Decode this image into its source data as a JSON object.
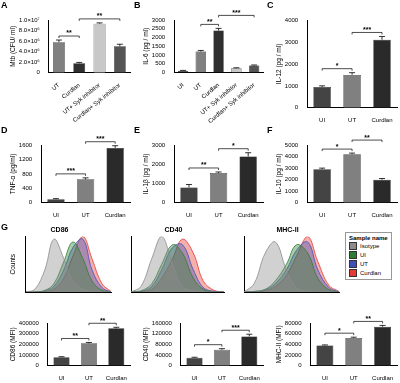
{
  "chart_data": [
    {
      "panel": "A",
      "type": "bar",
      "y_label": "Mtb (CFU/ ml)",
      "categories": [
        "UT",
        "Curdlan",
        "UT+ Syk inhibitor",
        "Curdlan+ Syk inhibitor"
      ],
      "values": [
        5800000,
        1800000,
        9300000,
        5000000
      ],
      "errors": [
        400000,
        150000,
        150000,
        400000
      ],
      "colors": [
        "#808080",
        "#2f2f2f",
        "#c8c8c8",
        "#555555"
      ],
      "ylim": [
        0,
        10000000
      ],
      "yticks": [
        0,
        {
          "value": 2000000,
          "label": "2.0×10⁶"
        },
        {
          "value": 4000000,
          "label": "4.0×10⁶"
        },
        {
          "value": 6000000,
          "label": "6.0×10⁶"
        },
        {
          "value": 8000000,
          "label": "8.0×10⁶"
        },
        {
          "value": 10000000,
          "label": "1.0×10⁷"
        }
      ],
      "grid": false,
      "annotations": [
        {
          "text": "**",
          "between": [
            "UT",
            "Curdlan"
          ]
        },
        {
          "text": "**",
          "between": [
            "Curdlan",
            "Curdlan+ Syk inhibitor"
          ]
        }
      ]
    },
    {
      "panel": "B",
      "type": "bar",
      "y_label": "IL-6 (pg / ml)",
      "categories": [
        "UI",
        "UT",
        "Curdlan",
        "UT+ Syk inhibitor",
        "Curdlan+ Syk inhibitor"
      ],
      "values": [
        100,
        1200,
        2400,
        250,
        400
      ],
      "errors": [
        20,
        60,
        120,
        20,
        30
      ],
      "colors": [
        "#333333",
        "#808080",
        "#2f2f2f",
        "#c8c8c8",
        "#555555"
      ],
      "ylim": [
        0,
        3000
      ],
      "yticks": [
        0,
        500,
        1000,
        1500,
        2000,
        2500,
        3000
      ],
      "grid": false,
      "annotations": [
        {
          "text": "**",
          "between": [
            "UT",
            "Curdlan"
          ]
        },
        {
          "text": "***",
          "between": [
            "Curdlan",
            "Curdlan+ Syk inhibitor"
          ]
        }
      ]
    },
    {
      "panel": "C",
      "type": "bar",
      "y_label": "IL-12 (pg / ml)",
      "categories": [
        "UI",
        "UT",
        "Curdlan"
      ],
      "values": [
        950,
        1500,
        3100
      ],
      "errors": [
        50,
        100,
        150
      ],
      "colors": [
        "#444444",
        "#808080",
        "#2a2a2a"
      ],
      "ylim": [
        0,
        4000
      ],
      "yticks": [
        0,
        1000,
        2000,
        3000,
        4000
      ],
      "grid": false,
      "annotations": [
        {
          "text": "*",
          "between": [
            "UI",
            "UT"
          ]
        },
        {
          "text": "***",
          "between": [
            "UT",
            "Curdlan"
          ]
        }
      ]
    },
    {
      "panel": "D",
      "type": "bar",
      "y_label": "TNF-α (pg/ml)",
      "categories": [
        "UI",
        "UT",
        "Curdlan"
      ],
      "values": [
        100,
        650,
        1520
      ],
      "errors": [
        15,
        40,
        60
      ],
      "colors": [
        "#444444",
        "#808080",
        "#2a2a2a"
      ],
      "ylim": [
        0,
        1600
      ],
      "yticks": [
        0,
        400,
        800,
        1200,
        1600
      ],
      "grid": false,
      "annotations": [
        {
          "text": "***",
          "between": [
            "UI",
            "UT"
          ]
        },
        {
          "text": "***",
          "between": [
            "UT",
            "Curdlan"
          ]
        }
      ]
    },
    {
      "panel": "E",
      "type": "bar",
      "y_label": "IL-1β (pg / ml)",
      "categories": [
        "UI",
        "UT",
        "Curdlan"
      ],
      "values": [
        800,
        1550,
        2400
      ],
      "errors": [
        150,
        50,
        200
      ],
      "colors": [
        "#444444",
        "#808080",
        "#2a2a2a"
      ],
      "ylim": [
        0,
        3000
      ],
      "yticks": [
        0,
        1000,
        2000,
        3000
      ],
      "grid": false,
      "annotations": [
        {
          "text": "**",
          "between": [
            "UI",
            "UT"
          ]
        },
        {
          "text": "*",
          "between": [
            "UT",
            "Curdlan"
          ]
        }
      ]
    },
    {
      "panel": "F",
      "type": "bar",
      "y_label": "IL-10 (pg / ml)",
      "categories": [
        "UI",
        "UT",
        "Curdlan"
      ],
      "values": [
        2900,
        4200,
        2000
      ],
      "errors": [
        100,
        100,
        100
      ],
      "colors": [
        "#444444",
        "#808080",
        "#2a2a2a"
      ],
      "ylim": [
        0,
        5000
      ],
      "yticks": [
        0,
        1000,
        2000,
        3000,
        4000,
        5000
      ],
      "grid": false,
      "annotations": [
        {
          "text": "*",
          "between": [
            "UI",
            "UT"
          ]
        },
        {
          "text": "**",
          "between": [
            "UT",
            "Curdlan"
          ]
        }
      ]
    },
    {
      "panel": "G",
      "type": "line",
      "title": "CD86",
      "y_label": "Counts",
      "log": "x",
      "tick_labels": false,
      "grid": false,
      "x": [
        10,
        30,
        100,
        300,
        1000,
        3000,
        10000,
        30000,
        100000,
        300000
      ],
      "xlim": [
        10,
        300000
      ],
      "ylim": [
        0,
        100
      ],
      "series": [
        {
          "name": "Isotype",
          "color": "#8c8c8c",
          "values": [
            0,
            5,
            40,
            95,
            60,
            20,
            5,
            1,
            0,
            0
          ]
        },
        {
          "name": "UI",
          "color": "#2e7d32",
          "values": [
            0,
            0,
            3,
            15,
            55,
            90,
            60,
            20,
            3,
            0
          ]
        },
        {
          "name": "UT",
          "color": "#3f51b5",
          "values": [
            0,
            0,
            2,
            10,
            40,
            80,
            95,
            40,
            8,
            0
          ]
        },
        {
          "name": "Curdlan",
          "color": "#e53935",
          "values": [
            0,
            0,
            1,
            5,
            25,
            65,
            100,
            60,
            15,
            1
          ]
        }
      ]
    },
    {
      "type": "line",
      "title": "CD40",
      "log": "x",
      "tick_labels": false,
      "grid": false,
      "x": [
        10,
        30,
        100,
        300,
        1000,
        3000,
        10000,
        30000,
        100000,
        300000
      ],
      "xlim": [
        10,
        300000
      ],
      "ylim": [
        0,
        100
      ],
      "series": [
        {
          "name": "Isotype",
          "color": "#8c8c8c",
          "values": [
            0,
            10,
            60,
            100,
            50,
            10,
            2,
            0,
            0,
            0
          ]
        },
        {
          "name": "UI",
          "color": "#2e7d32",
          "values": [
            0,
            2,
            15,
            50,
            85,
            70,
            25,
            5,
            0,
            0
          ]
        },
        {
          "name": "UT",
          "color": "#3f51b5",
          "values": [
            0,
            1,
            10,
            40,
            80,
            85,
            40,
            8,
            1,
            0
          ]
        },
        {
          "name": "Curdlan",
          "color": "#e53935",
          "values": [
            0,
            1,
            5,
            25,
            60,
            95,
            70,
            20,
            3,
            0
          ]
        }
      ]
    },
    {
      "type": "line",
      "title": "MHC-II",
      "log": "x",
      "tick_labels": false,
      "grid": false,
      "legend": "right",
      "legend_title": "Sample name",
      "x": [
        10,
        30,
        100,
        300,
        1000,
        3000,
        10000,
        30000,
        100000,
        300000
      ],
      "xlim": [
        10,
        300000
      ],
      "ylim": [
        0,
        100
      ],
      "series": [
        {
          "name": "Isotype",
          "color": "#8c8c8c",
          "values": [
            0,
            15,
            70,
            90,
            40,
            8,
            1,
            0,
            0,
            0
          ]
        },
        {
          "name": "UI",
          "color": "#2e7d32",
          "values": [
            0,
            1,
            5,
            20,
            50,
            85,
            70,
            25,
            4,
            0
          ]
        },
        {
          "name": "UT",
          "color": "#3f51b5",
          "values": [
            0,
            1,
            4,
            15,
            40,
            75,
            90,
            40,
            8,
            0
          ]
        },
        {
          "name": "Curdlan",
          "color": "#e53935",
          "values": [
            0,
            0,
            2,
            10,
            30,
            65,
            100,
            55,
            12,
            1
          ]
        }
      ]
    },
    {
      "type": "bar",
      "y_label": "CD86 (MFI)",
      "categories": [
        "UI",
        "UT",
        "Curdlan"
      ],
      "values": [
        80000,
        210000,
        350000
      ],
      "errors": [
        5000,
        8000,
        10000
      ],
      "colors": [
        "#444444",
        "#808080",
        "#2a2a2a"
      ],
      "ylim": [
        0,
        400000
      ],
      "yticks": [
        0,
        100000,
        200000,
        300000,
        400000
      ],
      "grid": false,
      "annotations": [
        {
          "text": "**",
          "between": [
            "UI",
            "UT"
          ]
        },
        {
          "text": "**",
          "between": [
            "UT",
            "Curdlan"
          ]
        }
      ]
    },
    {
      "type": "bar",
      "y_label": "CD40 (MFI)",
      "categories": [
        "UI",
        "UT",
        "Curdlan"
      ],
      "values": [
        30000,
        60000,
        110000
      ],
      "errors": [
        2000,
        4000,
        8000
      ],
      "colors": [
        "#444444",
        "#808080",
        "#2a2a2a"
      ],
      "ylim": [
        0,
        160000
      ],
      "yticks": [
        0,
        40000,
        80000,
        120000,
        160000
      ],
      "grid": false,
      "annotations": [
        {
          "text": "*",
          "between": [
            "UI",
            "UT"
          ]
        },
        {
          "text": "***",
          "between": [
            "UT",
            "Curdlan"
          ]
        }
      ]
    },
    {
      "type": "bar",
      "y_label": "MHC-II (MFI)",
      "categories": [
        "UI",
        "UT",
        "Curdlan"
      ],
      "values": [
        38000,
        52000,
        73000
      ],
      "errors": [
        1000,
        1500,
        2500
      ],
      "colors": [
        "#444444",
        "#808080",
        "#2a2a2a"
      ],
      "ylim": [
        0,
        80000
      ],
      "yticks": [
        0,
        20000,
        40000,
        60000,
        80000
      ],
      "grid": false,
      "annotations": [
        {
          "text": "*",
          "between": [
            "UI",
            "UT"
          ]
        },
        {
          "text": "**",
          "between": [
            "UT",
            "Curdlan"
          ]
        }
      ]
    }
  ]
}
